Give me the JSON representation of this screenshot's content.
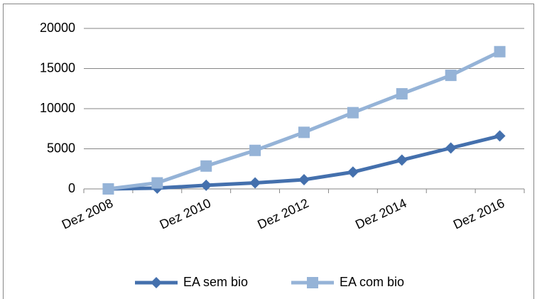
{
  "chart_data": {
    "type": "line",
    "categories": [
      "Dez 2008",
      null,
      "Dez 2010",
      null,
      "Dez 2012",
      null,
      "Dez 2014",
      null,
      "Dez 2016"
    ],
    "series": [
      {
        "name": "EA sem bio",
        "color": "#4470ad",
        "marker": "diamond",
        "values": [
          0,
          100,
          450,
          750,
          1150,
          2100,
          3600,
          5100,
          6600
        ]
      },
      {
        "name": "EA com bio",
        "color": "#95b3d7",
        "marker": "square",
        "values": [
          0,
          750,
          2850,
          4800,
          7050,
          9500,
          11850,
          14150,
          17100
        ]
      }
    ],
    "ylim": [
      0,
      20000
    ],
    "yticks": [
      0,
      5000,
      10000,
      15000,
      20000
    ],
    "grid": true,
    "legend": "bottom"
  }
}
